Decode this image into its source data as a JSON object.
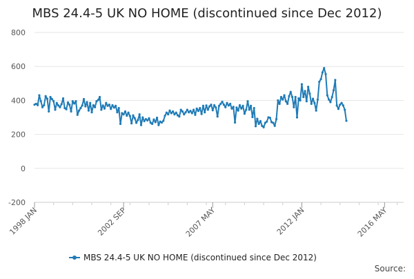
{
  "chart_data": {
    "type": "line",
    "title": "MBS 24.4-5 UK NO HOME (discontinued since Dec 2012)",
    "xlabel": "",
    "ylabel": "",
    "ylim": [
      -200,
      800
    ],
    "yticks": [
      -200,
      0,
      200,
      400,
      600,
      800
    ],
    "x_tick_labels": [
      "1998 JAN",
      "2002 SEP",
      "2007 MAY",
      "2012 JAN",
      "2016 MAY"
    ],
    "x_range": [
      "1998-01",
      "2017-05"
    ],
    "grid": true,
    "legend_position": "bottom",
    "series": [
      {
        "name": "MBS 24.4-5 UK NO HOME (discontinued since Dec 2012)",
        "color": "#1f7bb6",
        "points": [
          [
            "1998-01",
            375
          ],
          [
            "1998-02",
            380
          ],
          [
            "1998-03",
            372
          ],
          [
            "1998-04",
            430
          ],
          [
            "1998-05",
            395
          ],
          [
            "1998-06",
            360
          ],
          [
            "1998-07",
            372
          ],
          [
            "1998-08",
            425
          ],
          [
            "1998-09",
            410
          ],
          [
            "1998-10",
            335
          ],
          [
            "1998-11",
            420
          ],
          [
            "1998-12",
            408
          ],
          [
            "1999-01",
            395
          ],
          [
            "1999-02",
            345
          ],
          [
            "1999-03",
            385
          ],
          [
            "1999-04",
            370
          ],
          [
            "1999-05",
            360
          ],
          [
            "1999-06",
            378
          ],
          [
            "1999-07",
            412
          ],
          [
            "1999-08",
            355
          ],
          [
            "1999-09",
            348
          ],
          [
            "1999-10",
            388
          ],
          [
            "1999-11",
            375
          ],
          [
            "1999-12",
            335
          ],
          [
            "2000-01",
            395
          ],
          [
            "2000-02",
            382
          ],
          [
            "2000-03",
            395
          ],
          [
            "2000-04",
            315
          ],
          [
            "2000-05",
            340
          ],
          [
            "2000-06",
            355
          ],
          [
            "2000-07",
            370
          ],
          [
            "2000-08",
            408
          ],
          [
            "2000-09",
            365
          ],
          [
            "2000-10",
            390
          ],
          [
            "2000-11",
            340
          ],
          [
            "2000-12",
            385
          ],
          [
            "2001-01",
            330
          ],
          [
            "2001-02",
            372
          ],
          [
            "2001-03",
            360
          ],
          [
            "2001-04",
            395
          ],
          [
            "2001-05",
            402
          ],
          [
            "2001-06",
            420
          ],
          [
            "2001-07",
            345
          ],
          [
            "2001-08",
            370
          ],
          [
            "2001-09",
            352
          ],
          [
            "2001-10",
            385
          ],
          [
            "2001-11",
            368
          ],
          [
            "2001-12",
            375
          ],
          [
            "2002-01",
            350
          ],
          [
            "2002-02",
            372
          ],
          [
            "2002-03",
            358
          ],
          [
            "2002-04",
            368
          ],
          [
            "2002-05",
            330
          ],
          [
            "2002-06",
            355
          ],
          [
            "2002-07",
            262
          ],
          [
            "2002-08",
            325
          ],
          [
            "2002-09",
            318
          ],
          [
            "2002-10",
            335
          ],
          [
            "2002-11",
            310
          ],
          [
            "2002-12",
            328
          ],
          [
            "2003-01",
            308
          ],
          [
            "2003-02",
            265
          ],
          [
            "2003-03",
            312
          ],
          [
            "2003-04",
            295
          ],
          [
            "2003-05",
            268
          ],
          [
            "2003-06",
            285
          ],
          [
            "2003-07",
            318
          ],
          [
            "2003-08",
            255
          ],
          [
            "2003-09",
            300
          ],
          [
            "2003-10",
            278
          ],
          [
            "2003-11",
            290
          ],
          [
            "2003-12",
            282
          ],
          [
            "2004-01",
            295
          ],
          [
            "2004-02",
            268
          ],
          [
            "2004-03",
            262
          ],
          [
            "2004-04",
            288
          ],
          [
            "2004-05",
            272
          ],
          [
            "2004-06",
            298
          ],
          [
            "2004-07",
            255
          ],
          [
            "2004-08",
            275
          ],
          [
            "2004-09",
            270
          ],
          [
            "2004-10",
            280
          ],
          [
            "2004-11",
            310
          ],
          [
            "2004-12",
            328
          ],
          [
            "2005-01",
            318
          ],
          [
            "2005-02",
            340
          ],
          [
            "2005-03",
            325
          ],
          [
            "2005-04",
            335
          ],
          [
            "2005-05",
            318
          ],
          [
            "2005-06",
            328
          ],
          [
            "2005-07",
            312
          ],
          [
            "2005-08",
            305
          ],
          [
            "2005-09",
            345
          ],
          [
            "2005-10",
            335
          ],
          [
            "2005-11",
            318
          ],
          [
            "2005-12",
            330
          ],
          [
            "2006-01",
            345
          ],
          [
            "2006-02",
            330
          ],
          [
            "2006-03",
            338
          ],
          [
            "2006-04",
            325
          ],
          [
            "2006-05",
            345
          ],
          [
            "2006-06",
            315
          ],
          [
            "2006-07",
            352
          ],
          [
            "2006-08",
            338
          ],
          [
            "2006-09",
            355
          ],
          [
            "2006-10",
            320
          ],
          [
            "2006-11",
            368
          ],
          [
            "2006-12",
            330
          ],
          [
            "2007-01",
            370
          ],
          [
            "2007-02",
            345
          ],
          [
            "2007-03",
            365
          ],
          [
            "2007-04",
            375
          ],
          [
            "2007-05",
            342
          ],
          [
            "2007-06",
            372
          ],
          [
            "2007-07",
            358
          ],
          [
            "2007-08",
            305
          ],
          [
            "2007-09",
            368
          ],
          [
            "2007-10",
            380
          ],
          [
            "2007-11",
            392
          ],
          [
            "2007-12",
            375
          ],
          [
            "2008-01",
            360
          ],
          [
            "2008-02",
            385
          ],
          [
            "2008-03",
            370
          ],
          [
            "2008-04",
            380
          ],
          [
            "2008-05",
            352
          ],
          [
            "2008-06",
            362
          ],
          [
            "2008-07",
            270
          ],
          [
            "2008-08",
            358
          ],
          [
            "2008-09",
            340
          ],
          [
            "2008-10",
            372
          ],
          [
            "2008-11",
            352
          ],
          [
            "2008-12",
            368
          ],
          [
            "2009-01",
            322
          ],
          [
            "2009-02",
            345
          ],
          [
            "2009-03",
            395
          ],
          [
            "2009-04",
            345
          ],
          [
            "2009-05",
            368
          ],
          [
            "2009-06",
            302
          ],
          [
            "2009-07",
            355
          ],
          [
            "2009-08",
            248
          ],
          [
            "2009-09",
            292
          ],
          [
            "2009-10",
            262
          ],
          [
            "2009-11",
            278
          ],
          [
            "2009-12",
            250
          ],
          [
            "2010-01",
            242
          ],
          [
            "2010-02",
            268
          ],
          [
            "2010-03",
            275
          ],
          [
            "2010-04",
            300
          ],
          [
            "2010-05",
            298
          ],
          [
            "2010-06",
            272
          ],
          [
            "2010-07",
            268
          ],
          [
            "2010-08",
            250
          ],
          [
            "2010-09",
            290
          ],
          [
            "2010-10",
            400
          ],
          [
            "2010-11",
            380
          ],
          [
            "2010-12",
            420
          ],
          [
            "2011-01",
            405
          ],
          [
            "2011-02",
            430
          ],
          [
            "2011-03",
            395
          ],
          [
            "2011-04",
            380
          ],
          [
            "2011-05",
            425
          ],
          [
            "2011-06",
            450
          ],
          [
            "2011-07",
            420
          ],
          [
            "2011-08",
            360
          ],
          [
            "2011-09",
            420
          ],
          [
            "2011-10",
            300
          ],
          [
            "2011-11",
            412
          ],
          [
            "2011-12",
            400
          ],
          [
            "2012-01",
            495
          ],
          [
            "2012-02",
            420
          ],
          [
            "2012-03",
            455
          ],
          [
            "2012-04",
            395
          ],
          [
            "2012-05",
            480
          ],
          [
            "2012-06",
            440
          ],
          [
            "2012-07",
            380
          ],
          [
            "2012-08",
            410
          ],
          [
            "2012-09",
            385
          ],
          [
            "2012-10",
            340
          ],
          [
            "2012-11",
            405
          ],
          [
            "2012-12",
            510
          ],
          [
            "2013-01",
            525
          ],
          [
            "2013-02",
            565
          ],
          [
            "2013-03",
            590
          ],
          [
            "2013-04",
            555
          ],
          [
            "2013-05",
            430
          ],
          [
            "2013-06",
            405
          ],
          [
            "2013-07",
            390
          ],
          [
            "2013-08",
            420
          ],
          [
            "2013-09",
            460
          ],
          [
            "2013-10",
            520
          ],
          [
            "2013-11",
            370
          ],
          [
            "2013-12",
            350
          ],
          [
            "2014-01",
            375
          ],
          [
            "2014-02",
            385
          ],
          [
            "2014-03",
            370
          ],
          [
            "2014-04",
            345
          ],
          [
            "2014-05",
            280
          ]
        ]
      }
    ]
  },
  "source_label": "Source:"
}
